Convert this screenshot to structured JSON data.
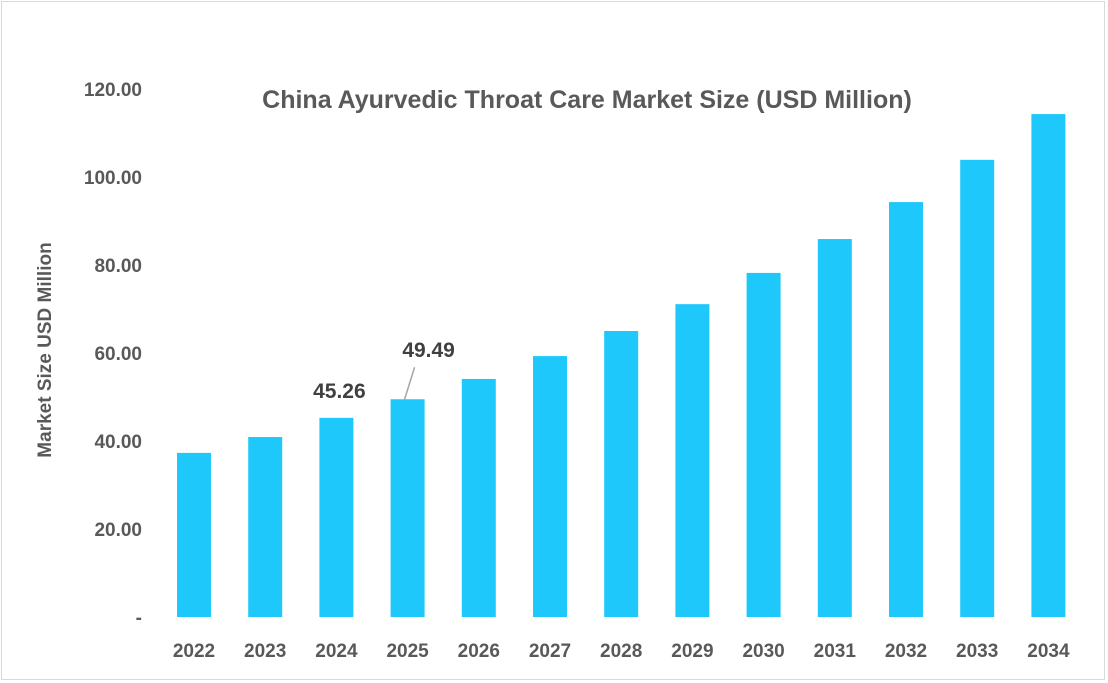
{
  "chart_data": {
    "type": "bar",
    "title": "China Ayurvedic Throat Care Market Size (USD Million)",
    "xlabel": "",
    "ylabel": "Market Size USD Million",
    "ylim": [
      0,
      120
    ],
    "yticks": [
      0,
      20,
      40,
      60,
      80,
      100,
      120
    ],
    "ytick_labels": [
      "-",
      "20.00",
      "40.00",
      "60.00",
      "80.00",
      "100.00",
      "120.00"
    ],
    "categories": [
      "2022",
      "2023",
      "2024",
      "2025",
      "2026",
      "2027",
      "2028",
      "2029",
      "2030",
      "2031",
      "2032",
      "2033",
      "2034"
    ],
    "values": [
      37.3,
      40.9,
      45.26,
      49.49,
      54.1,
      59.3,
      65.0,
      71.1,
      78.2,
      85.9,
      94.3,
      103.9,
      114.3
    ],
    "data_labels": {
      "2024": "45.26",
      "2025": "49.49"
    },
    "bar_color": "#1EC8FA",
    "grid": false,
    "legend": "none"
  }
}
